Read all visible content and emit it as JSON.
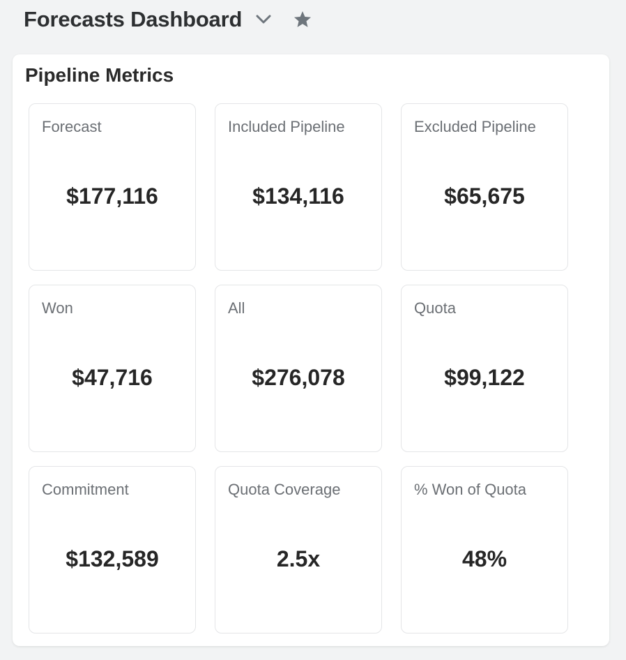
{
  "header": {
    "title": "Forecasts Dashboard",
    "dropdown_icon": "chevron-down-icon",
    "favorite_icon": "star-icon"
  },
  "panel": {
    "title": "Pipeline Metrics",
    "cards": [
      {
        "label": "Forecast",
        "value": "$177,116"
      },
      {
        "label": "Included Pipeline",
        "value": "$134,116"
      },
      {
        "label": "Excluded Pipeline",
        "value": "$65,675"
      },
      {
        "label": "Won",
        "value": "$47,716"
      },
      {
        "label": "All",
        "value": "$276,078"
      },
      {
        "label": "Quota",
        "value": "$99,122"
      },
      {
        "label": "Commitment",
        "value": "$132,589"
      },
      {
        "label": "Quota Coverage",
        "value": "2.5x"
      },
      {
        "label": "% Won of Quota",
        "value": "48%"
      }
    ]
  },
  "colors": {
    "background": "#f2f3f4",
    "card_border": "#e4e5e7",
    "label_text": "#6b6f74",
    "value_text": "#262626",
    "icon": "#6e757c"
  }
}
